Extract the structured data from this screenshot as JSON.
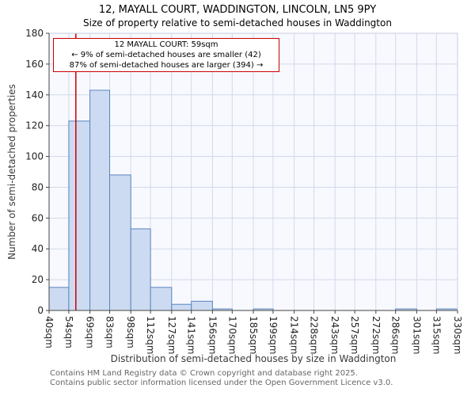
{
  "title": {
    "line1": "12, MAYALL COURT, WADDINGTON, LINCOLN, LN5 9PY",
    "line2": "Size of property relative to semi-detached houses in Waddington"
  },
  "annotation": {
    "line1": "12 MAYALL COURT: 59sqm",
    "line2": "← 9% of semi-detached houses are smaller (42)",
    "line3": "87% of semi-detached houses are larger (394) →"
  },
  "footer": {
    "line1": "Contains HM Land Registry data © Crown copyright and database right 2025.",
    "line2": "Contains public sector information licensed under the Open Government Licence v3.0."
  },
  "chart_data": {
    "type": "bar",
    "title": "12, MAYALL COURT, WADDINGTON, LINCOLN, LN5 9PY",
    "subtitle": "Size of property relative to semi-detached houses in Waddington",
    "xlabel": "Distribution of semi-detached houses by size in Waddington",
    "ylabel": "Number of semi-detached properties",
    "bin_edges": [
      40,
      54,
      69,
      83,
      98,
      112,
      127,
      141,
      156,
      170,
      185,
      199,
      214,
      228,
      243,
      257,
      272,
      286,
      301,
      315,
      330
    ],
    "bin_labels": [
      "40sqm",
      "54sqm",
      "69sqm",
      "83sqm",
      "98sqm",
      "112sqm",
      "127sqm",
      "141sqm",
      "156sqm",
      "170sqm",
      "185sqm",
      "199sqm",
      "214sqm",
      "228sqm",
      "243sqm",
      "257sqm",
      "272sqm",
      "286sqm",
      "301sqm",
      "315sqm",
      "330sqm"
    ],
    "values": [
      15,
      123,
      143,
      88,
      53,
      15,
      4,
      6,
      1,
      0,
      1,
      0,
      0,
      0,
      0,
      0,
      0,
      1,
      0,
      1
    ],
    "ylim": [
      0,
      180
    ],
    "yticks": [
      0,
      20,
      40,
      60,
      80,
      100,
      120,
      140,
      160,
      180
    ],
    "marker_value": 59,
    "marker_label": "59sqm",
    "grid": true,
    "legend": "none",
    "colors": {
      "bar_fill": "#ccdbf1",
      "bar_border": "#5b84c0",
      "grid": "#d2d9ea",
      "plot_bg": "#f7f9fe",
      "frame": "#c4cde0",
      "axis": "#444444",
      "marker": "#cc0000",
      "text": "#222222",
      "footer_text": "#666666"
    }
  }
}
